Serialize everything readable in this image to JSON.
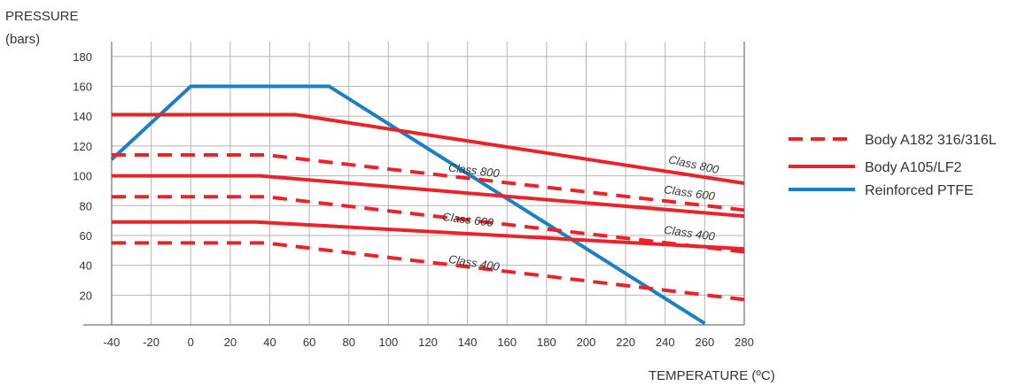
{
  "chart_data": {
    "type": "line",
    "ylabel_line1": "PRESSURE",
    "ylabel_line2": "(bars)",
    "xlabel": "TEMPERATURE (ºC)",
    "xlim": [
      -40,
      280
    ],
    "ylim": [
      0,
      190
    ],
    "x_ticks": [
      -40,
      -20,
      0,
      20,
      40,
      60,
      80,
      100,
      120,
      140,
      160,
      180,
      200,
      220,
      240,
      260,
      280
    ],
    "y_ticks": [
      20,
      40,
      60,
      80,
      100,
      120,
      140,
      160,
      180
    ],
    "grid": true,
    "legend_position": "right",
    "colors": {
      "red": "#e8232a",
      "blue": "#1b7fc4",
      "grid": "#b5b5b5"
    },
    "legend": [
      {
        "label": "Body A182 316/316L",
        "color": "#e8232a",
        "style": "dashed"
      },
      {
        "label": "Body A105/LF2",
        "color": "#e8232a",
        "style": "solid"
      },
      {
        "label": "Reinforced PTFE",
        "color": "#1b7fc4",
        "style": "solid"
      }
    ],
    "series": [
      {
        "group": "Reinforced PTFE",
        "color": "#1b7fc4",
        "style": "solid",
        "points": [
          [
            -40,
            111
          ],
          [
            0,
            160
          ],
          [
            70,
            160
          ],
          [
            260,
            1
          ]
        ]
      },
      {
        "group": "Body A105/LF2",
        "color": "#e8232a",
        "style": "solid",
        "points": [
          [
            -40,
            141
          ],
          [
            53,
            141
          ],
          [
            280,
            95
          ]
        ]
      },
      {
        "group": "Body A105/LF2",
        "color": "#e8232a",
        "style": "solid",
        "points": [
          [
            -40,
            100
          ],
          [
            35,
            100
          ],
          [
            280,
            73
          ]
        ]
      },
      {
        "group": "Body A105/LF2",
        "color": "#e8232a",
        "style": "solid",
        "points": [
          [
            -40,
            69
          ],
          [
            33,
            69
          ],
          [
            280,
            51
          ]
        ]
      },
      {
        "group": "Body A182 316/316L",
        "color": "#e8232a",
        "style": "dashed",
        "points": [
          [
            -40,
            114
          ],
          [
            38,
            114
          ],
          [
            280,
            77
          ]
        ]
      },
      {
        "group": "Body A182 316/316L",
        "color": "#e8232a",
        "style": "dashed",
        "points": [
          [
            -40,
            86
          ],
          [
            38,
            86
          ],
          [
            280,
            49
          ]
        ]
      },
      {
        "group": "Body A182 316/316L",
        "color": "#e8232a",
        "style": "dashed",
        "points": [
          [
            -40,
            55
          ],
          [
            38,
            55
          ],
          [
            280,
            17
          ]
        ]
      }
    ],
    "annotations": [
      {
        "text": "Class 800",
        "x": 143,
        "y": 101,
        "angle": 7
      },
      {
        "text": "Class 800",
        "x": 254,
        "y": 105,
        "angle": 12
      },
      {
        "text": "Class 600",
        "x": 140,
        "y": 68,
        "angle": 7
      },
      {
        "text": "Class 600",
        "x": 252,
        "y": 86,
        "angle": 8
      },
      {
        "text": "Class 400",
        "x": 143,
        "y": 39,
        "angle": 9
      },
      {
        "text": "Class 400",
        "x": 252,
        "y": 59,
        "angle": 8
      }
    ]
  }
}
